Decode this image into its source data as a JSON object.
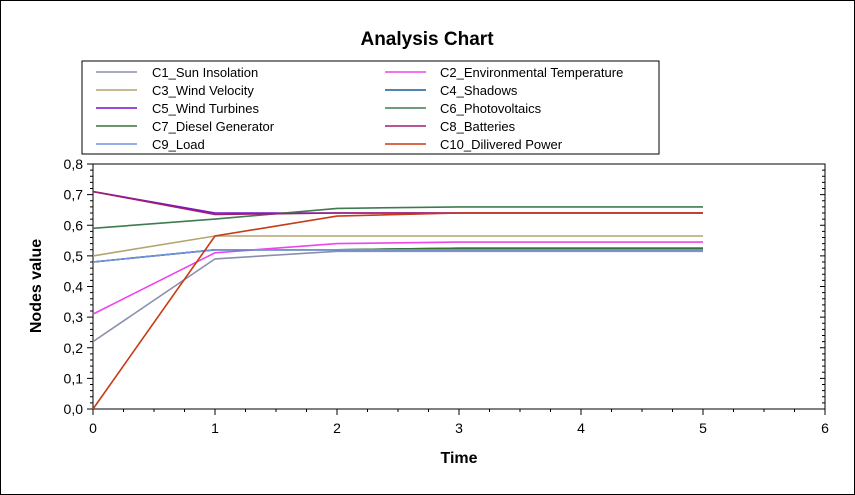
{
  "chart_data": {
    "type": "line",
    "title": "Analysis Chart",
    "xlabel": "Time",
    "ylabel": "Nodes value",
    "xlim": [
      0,
      6
    ],
    "ylim": [
      0,
      0.8
    ],
    "x_ticks": [
      "0",
      "1",
      "2",
      "3",
      "4",
      "5",
      "6"
    ],
    "y_ticks": [
      "0,0",
      "0,1",
      "0,2",
      "0,3",
      "0,4",
      "0,5",
      "0,6",
      "0,7",
      "0,8"
    ],
    "grid": false,
    "legend_placement": "top, two columns",
    "x": [
      0,
      1,
      2,
      3,
      4,
      5
    ],
    "series": [
      {
        "name": "C1_Sun Insolation",
        "color": "#8a8fae",
        "values": [
          0.22,
          0.49,
          0.515,
          0.515,
          0.515,
          0.515
        ]
      },
      {
        "name": "C2_Environmental Temperature",
        "color": "#ee44ee",
        "values": [
          0.31,
          0.51,
          0.54,
          0.545,
          0.545,
          0.545
        ]
      },
      {
        "name": "C3_Wind Velocity",
        "color": "#b4a46e",
        "values": [
          0.5,
          0.565,
          0.565,
          0.565,
          0.565,
          0.565
        ]
      },
      {
        "name": "C4_Shadows",
        "color": "#1a5c94",
        "values": [
          0.48,
          0.52,
          0.52,
          0.525,
          0.525,
          0.525
        ]
      },
      {
        "name": "C5_Wind Turbines",
        "color": "#7a12c8",
        "values": [
          0.71,
          0.64,
          0.64,
          0.64,
          0.64,
          0.64
        ]
      },
      {
        "name": "C6_Photovoltaics",
        "color": "#3e7c50",
        "values": [
          0.59,
          0.62,
          0.655,
          0.66,
          0.66,
          0.66
        ]
      },
      {
        "name": "C7_Diesel Generator",
        "color": "#3a7238",
        "values": [
          0.48,
          0.52,
          0.52,
          0.525,
          0.525,
          0.525
        ]
      },
      {
        "name": "C8_Batteries",
        "color": "#a01e70",
        "values": [
          0.71,
          0.635,
          0.64,
          0.64,
          0.64,
          0.64
        ]
      },
      {
        "name": "C9_Load",
        "color": "#7090e0",
        "values": [
          0.48,
          0.52,
          0.52,
          0.52,
          0.52,
          0.52
        ]
      },
      {
        "name": "C10_Dilivered Power",
        "color": "#c83a14",
        "values": [
          0.0,
          0.565,
          0.63,
          0.64,
          0.64,
          0.64
        ]
      }
    ]
  }
}
